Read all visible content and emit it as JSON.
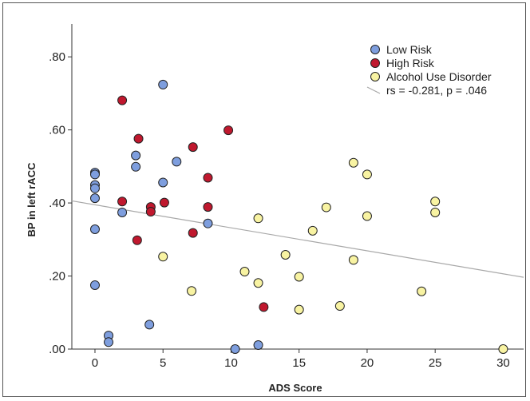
{
  "chart_data": {
    "type": "scatter",
    "xlabel": "ADS Score",
    "ylabel": "BP in left rACC",
    "xlim": [
      -1.7,
      31.5
    ],
    "ylim": [
      0,
      0.89
    ],
    "x_ticks": [
      0,
      5,
      10,
      15,
      20,
      25,
      30
    ],
    "x_tick_labels": [
      "0",
      "5",
      "10",
      "15",
      "20",
      "25",
      "30"
    ],
    "y_ticks": [
      0,
      0.2,
      0.4,
      0.6,
      0.8
    ],
    "y_tick_labels": [
      ".00",
      ".20",
      ".40",
      ".60",
      ".80"
    ],
    "grid": false,
    "legend_position": "top-right",
    "series": [
      {
        "name": "Low Risk",
        "color": "#7e9ede",
        "points": [
          [
            0,
            0.483
          ],
          [
            0,
            0.478
          ],
          [
            0,
            0.449
          ],
          [
            0,
            0.44
          ],
          [
            0,
            0.413
          ],
          [
            0,
            0.328
          ],
          [
            0,
            0.175
          ],
          [
            1,
            0.037
          ],
          [
            1,
            0.019
          ],
          [
            2,
            0.374
          ],
          [
            3,
            0.53
          ],
          [
            3,
            0.499
          ],
          [
            4,
            0.067
          ],
          [
            5,
            0.724
          ],
          [
            5,
            0.456
          ],
          [
            6,
            0.513
          ],
          [
            8.3,
            0.344
          ],
          [
            10.3,
            0.0
          ],
          [
            12,
            0.011
          ]
        ]
      },
      {
        "name": "High Risk",
        "color": "#c0182e",
        "points": [
          [
            2,
            0.681
          ],
          [
            2,
            0.404
          ],
          [
            3.2,
            0.576
          ],
          [
            3.1,
            0.298
          ],
          [
            4.1,
            0.389
          ],
          [
            4.1,
            0.376
          ],
          [
            5.1,
            0.401
          ],
          [
            7.2,
            0.553
          ],
          [
            7.2,
            0.318
          ],
          [
            8.3,
            0.469
          ],
          [
            8.3,
            0.389
          ],
          [
            9.8,
            0.599
          ],
          [
            12.4,
            0.115
          ]
        ]
      },
      {
        "name": "Alcohol Use Disorder",
        "color": "#f8f3a2",
        "points": [
          [
            5,
            0.253
          ],
          [
            7.1,
            0.159
          ],
          [
            11,
            0.212
          ],
          [
            12,
            0.181
          ],
          [
            12,
            0.358
          ],
          [
            14,
            0.258
          ],
          [
            15,
            0.108
          ],
          [
            15,
            0.198
          ],
          [
            16,
            0.324
          ],
          [
            17,
            0.388
          ],
          [
            18,
            0.118
          ],
          [
            19,
            0.51
          ],
          [
            19,
            0.244
          ],
          [
            20,
            0.478
          ],
          [
            20,
            0.364
          ],
          [
            24,
            0.158
          ],
          [
            25,
            0.404
          ],
          [
            25,
            0.374
          ],
          [
            30,
            0.0
          ]
        ]
      }
    ],
    "fit_line": {
      "label": "rs = -0.281, p = .046",
      "color": "#a8a8a8",
      "intercept": 0.395,
      "slope": -0.0063,
      "x_range": [
        -1.7,
        31.5
      ]
    }
  }
}
